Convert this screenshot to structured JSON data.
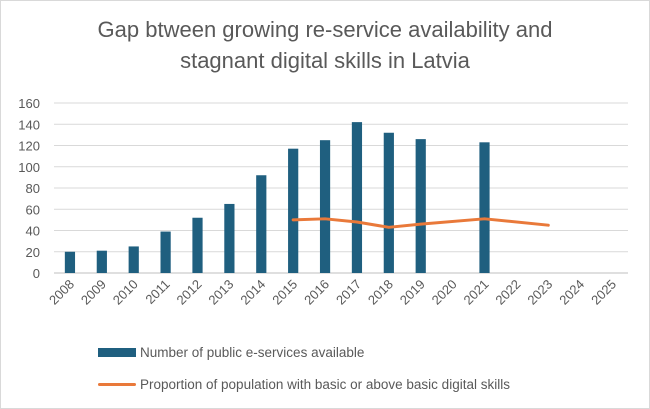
{
  "chart_data": {
    "type": "bar",
    "title_lines": [
      "Gap btween growing re-service availability and",
      "stagnant digital skills in Latvia"
    ],
    "categories": [
      "2008",
      "2009",
      "2010",
      "2011",
      "2012",
      "2013",
      "2014",
      "2015",
      "2016",
      "2017",
      "2018",
      "2019",
      "2020",
      "2021",
      "2022",
      "2023",
      "2024",
      "2025"
    ],
    "ylim": [
      0,
      160
    ],
    "yticks": [
      0,
      20,
      40,
      60,
      80,
      100,
      120,
      140,
      160
    ],
    "grid": true,
    "legend_position": "bottom",
    "series": [
      {
        "name": "Number of public e-services available",
        "type": "bar",
        "color": "#1f5f7f",
        "values": [
          20,
          21,
          25,
          39,
          52,
          65,
          92,
          117,
          125,
          142,
          132,
          126,
          null,
          123,
          null,
          null,
          null,
          null
        ]
      },
      {
        "name": "Proportion of population with basic or above basic digital skills",
        "type": "line",
        "color": "#e9793a",
        "values": [
          null,
          null,
          null,
          null,
          null,
          null,
          null,
          50,
          51,
          48,
          43,
          46,
          null,
          51,
          null,
          45,
          null,
          null
        ]
      }
    ]
  }
}
